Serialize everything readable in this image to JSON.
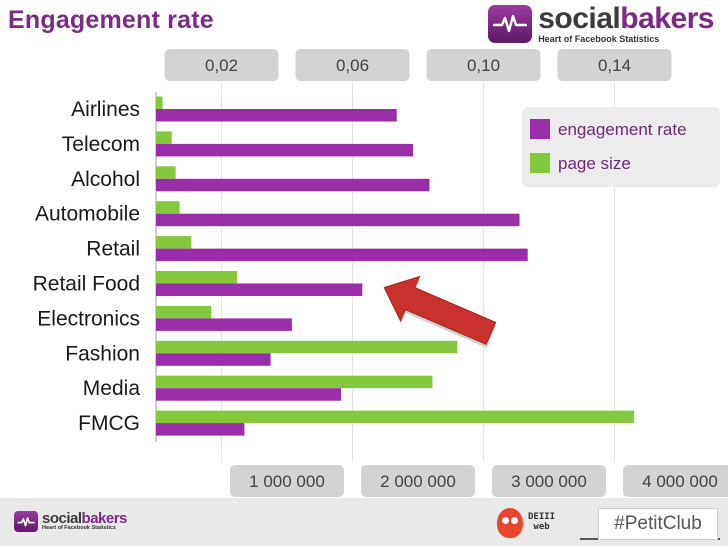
{
  "title": "Engagement rate",
  "brand": {
    "name_part1": "social",
    "name_part2": "bakers",
    "tagline": "Heart of Facebook Statistics"
  },
  "footer": {
    "partner_line1": "DEIII",
    "partner_line2": "web",
    "hashtag": "#PetitClub"
  },
  "colors": {
    "engagement": "#9a2ea8",
    "page_size": "#84c83d",
    "arrow": "#c8312c",
    "title": "#7a2b83",
    "pill": "#d3d3d3"
  },
  "chart_data": {
    "type": "bar",
    "orientation": "horizontal",
    "categories": [
      "Airlines",
      "Telecom",
      "Alcohol",
      "Automobile",
      "Retail",
      "Retail Food",
      "Electronics",
      "Fashion",
      "Media",
      "FMCG"
    ],
    "series": [
      {
        "name": "page size",
        "axis": "bottom",
        "values": [
          50000,
          120000,
          150000,
          180000,
          270000,
          620000,
          420000,
          2300000,
          2110000,
          3650000
        ]
      },
      {
        "name": "engagement rate",
        "axis": "top",
        "values": [
          0.0735,
          0.0785,
          0.0835,
          0.111,
          0.1135,
          0.063,
          0.0415,
          0.035,
          0.0565,
          0.027
        ]
      }
    ],
    "top_axis": {
      "ticks": [
        0.02,
        0.06,
        0.1,
        0.14
      ],
      "tick_labels": [
        "0,02",
        "0,06",
        "0,10",
        "0,14"
      ],
      "range": [
        0,
        0.16
      ]
    },
    "bottom_axis": {
      "ticks": [
        1000000,
        2000000,
        3000000,
        4000000
      ],
      "tick_labels": [
        "1 000 000",
        "2 000 000",
        "3 000 000",
        "4 000 000"
      ],
      "range": [
        0,
        4500000
      ]
    },
    "legend": {
      "position": "top-right",
      "items": [
        "engagement rate",
        "page size"
      ]
    },
    "annotation": {
      "type": "arrow",
      "points_to": "Retail Food",
      "series": "engagement rate"
    },
    "grid": true
  }
}
